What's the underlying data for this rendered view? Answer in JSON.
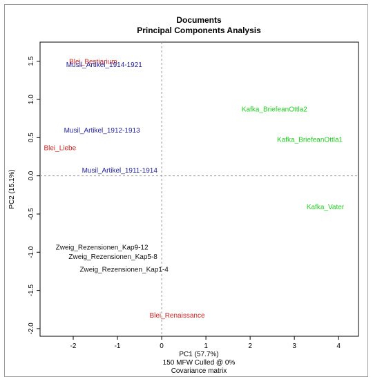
{
  "chart_data": {
    "type": "scatter",
    "title": "Documents",
    "subtitle": "Principal Components Analysis",
    "xlabel": "PC1 (57.7%)",
    "ylabel": "PC2 (15.1%)",
    "caption_lines": [
      "150 MFW  Culled @ 0%",
      "Covariance matrix"
    ],
    "xlim": [
      -2.75,
      4.45
    ],
    "ylim": [
      -2.1,
      1.75
    ],
    "x_ticks": [
      -2,
      -1,
      0,
      1,
      2,
      3,
      4
    ],
    "y_ticks": [
      -2.0,
      -1.5,
      -1.0,
      -0.5,
      0.0,
      0.5,
      1.0,
      1.5
    ],
    "y_tick_labels": [
      "-2.0",
      "-1.5",
      "-1.0",
      "-0.5",
      "0.0",
      "0.5",
      "1.0",
      "1.5"
    ],
    "reference_lines": {
      "x": 0,
      "y": 0
    },
    "grid": false,
    "colors": {
      "Blei": "#cc2222",
      "Musil": "#22229a",
      "Kafka": "#22cc22",
      "Zweig": "#111111"
    },
    "points": [
      {
        "label": "Blei_Bestiarium",
        "group": "Blei",
        "x": -1.55,
        "y": 1.5
      },
      {
        "label": "Musil_Artikel_1914-1921",
        "group": "Musil",
        "x": -1.3,
        "y": 1.46
      },
      {
        "label": "Musil_Artikel_1912-1913",
        "group": "Musil",
        "x": -1.35,
        "y": 0.6
      },
      {
        "label": "Blei_Liebe",
        "group": "Blei",
        "x": -2.3,
        "y": 0.37
      },
      {
        "label": "Musil_Artikel_1911-1914",
        "group": "Musil",
        "x": -0.95,
        "y": 0.08
      },
      {
        "label": "Kafka_BriefeanOttla2",
        "group": "Kafka",
        "x": 2.55,
        "y": 0.88
      },
      {
        "label": "Kafka_BriefeanOttla1",
        "group": "Kafka",
        "x": 3.35,
        "y": 0.48
      },
      {
        "label": "Kafka_Vater",
        "group": "Kafka",
        "x": 3.7,
        "y": -0.4
      },
      {
        "label": "Zweig_Rezensionen_Kap9-12",
        "group": "Zweig",
        "x": -1.35,
        "y": -0.93
      },
      {
        "label": "Zweig_Rezensionen_Kap5-8",
        "group": "Zweig",
        "x": -1.1,
        "y": -1.05
      },
      {
        "label": "Zweig_Rezensionen_Kap1-4",
        "group": "Zweig",
        "x": -0.85,
        "y": -1.22
      },
      {
        "label": "Blei_Renaissance",
        "group": "Blei",
        "x": 0.35,
        "y": -1.82
      }
    ]
  }
}
